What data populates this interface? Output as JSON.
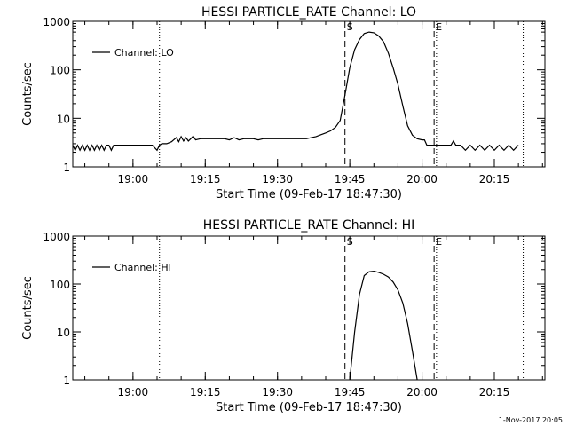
{
  "chart_data": [
    {
      "type": "line",
      "title": "HESSI PARTICLE_RATE Channel: LO",
      "xlabel": "Start Time (09-Feb-17 18:47:30)",
      "ylabel": "Counts/sec",
      "y_scale": "log",
      "ylim": [
        1,
        1000
      ],
      "y_ticks": [
        "1",
        "10",
        "100",
        "1000"
      ],
      "x_ticks": [
        "19:00",
        "19:15",
        "19:30",
        "19:45",
        "20:00",
        "20:15"
      ],
      "legend_location": "top-left",
      "series": [
        {
          "name": "Channel: LO",
          "x": [
            "18:47:30",
            "18:48",
            "18:48:30",
            "18:49",
            "18:49:30",
            "18:50",
            "18:50:30",
            "18:51",
            "18:51:30",
            "18:52",
            "18:52:30",
            "18:53",
            "18:53:30",
            "18:54",
            "18:54:30",
            "18:55",
            "18:55:30",
            "18:56",
            "18:56:30",
            "18:57",
            "18:57:30",
            "18:58",
            "18:59",
            "19:00",
            "19:01",
            "19:02",
            "19:03",
            "19:04",
            "19:05",
            "19:05:30",
            "19:06",
            "19:07",
            "19:08",
            "19:09",
            "19:09:30",
            "19:10",
            "19:10:30",
            "19:11",
            "19:11:30",
            "19:12",
            "19:12:30",
            "19:13",
            "19:14",
            "19:15",
            "19:16",
            "19:17",
            "19:18",
            "19:19",
            "19:20",
            "19:21",
            "19:22",
            "19:23",
            "19:24",
            "19:25",
            "19:26",
            "19:27",
            "19:28",
            "19:29",
            "19:30",
            "19:31",
            "19:32",
            "19:33",
            "19:34",
            "19:35",
            "19:36",
            "19:37",
            "19:38",
            "19:39",
            "19:40",
            "19:41",
            "19:42",
            "19:43",
            "19:44",
            "19:45",
            "19:46",
            "19:47",
            "19:48",
            "19:49",
            "19:50",
            "19:51",
            "19:52",
            "19:53",
            "19:54",
            "19:55",
            "19:56",
            "19:57",
            "19:58",
            "19:59",
            "20:00",
            "20:00:30",
            "20:01",
            "20:02",
            "20:03",
            "20:04",
            "20:05",
            "20:06",
            "20:06:30",
            "20:07",
            "20:08",
            "20:09",
            "20:10",
            "20:11",
            "20:12",
            "20:13",
            "20:14",
            "20:15",
            "20:16",
            "20:17",
            "20:18",
            "20:19",
            "20:20"
          ],
          "values": [
            2.8,
            2.2,
            2.8,
            2.2,
            2.8,
            2.2,
            2.8,
            2.2,
            2.8,
            2.2,
            2.8,
            2.2,
            2.8,
            2.2,
            2.8,
            2.8,
            2.2,
            2.8,
            2.8,
            2.8,
            2.8,
            2.8,
            2.8,
            2.8,
            2.8,
            2.8,
            2.8,
            2.8,
            2.2,
            2.8,
            3.0,
            3.0,
            3.3,
            4.0,
            3.3,
            4.2,
            3.4,
            4.0,
            3.4,
            3.8,
            4.3,
            3.6,
            3.8,
            3.8,
            3.8,
            3.8,
            3.8,
            3.8,
            3.6,
            4.0,
            3.6,
            3.8,
            3.8,
            3.8,
            3.6,
            3.8,
            3.8,
            3.8,
            3.8,
            3.8,
            3.8,
            3.8,
            3.8,
            3.8,
            3.8,
            4.0,
            4.2,
            4.6,
            5.0,
            5.5,
            6.5,
            9.0,
            30,
            110,
            260,
            420,
            560,
            600,
            580,
            500,
            380,
            220,
            110,
            50,
            18,
            7,
            4.5,
            3.8,
            3.6,
            3.6,
            2.8,
            2.8,
            2.8,
            2.8,
            2.8,
            2.8,
            3.4,
            2.8,
            2.8,
            2.2,
            2.8,
            2.2,
            2.8,
            2.2,
            2.8,
            2.2,
            2.8,
            2.2,
            2.8,
            2.2,
            2.8
          ]
        }
      ],
      "annotations": [
        {
          "label": "S",
          "x": "19:44",
          "style": "dashed"
        },
        {
          "label": "E",
          "x": "20:02:30",
          "style": "dashed"
        }
      ],
      "dotted_markers_x": [
        "18:47:30",
        "19:05:30",
        "20:03",
        "20:21"
      ]
    },
    {
      "type": "line",
      "title": "HESSI PARTICLE_RATE Channel: HI",
      "xlabel": "Start Time (09-Feb-17 18:47:30)",
      "ylabel": "Counts/sec",
      "y_scale": "log",
      "ylim": [
        1,
        1000
      ],
      "y_ticks": [
        "1",
        "10",
        "100",
        "1000"
      ],
      "x_ticks": [
        "19:00",
        "19:15",
        "19:30",
        "19:45",
        "20:00",
        "20:15"
      ],
      "legend_location": "top-left",
      "series": [
        {
          "name": "Channel: HI",
          "x": [
            "19:45",
            "19:46",
            "19:47",
            "19:48",
            "19:49",
            "19:50",
            "19:51",
            "19:52",
            "19:53",
            "19:54",
            "19:55",
            "19:56",
            "19:57",
            "19:58",
            "19:59"
          ],
          "values": [
            1,
            10,
            60,
            150,
            180,
            185,
            175,
            160,
            140,
            110,
            75,
            40,
            15,
            4,
            1
          ]
        }
      ],
      "annotations": [
        {
          "label": "S",
          "x": "19:44",
          "style": "dashed"
        },
        {
          "label": "E",
          "x": "20:02:30",
          "style": "dashed"
        }
      ],
      "dotted_markers_x": [
        "18:47:30",
        "19:05:30",
        "20:03",
        "20:21"
      ]
    }
  ],
  "footer": {
    "timestamp": "1-Nov-2017 20:05"
  }
}
